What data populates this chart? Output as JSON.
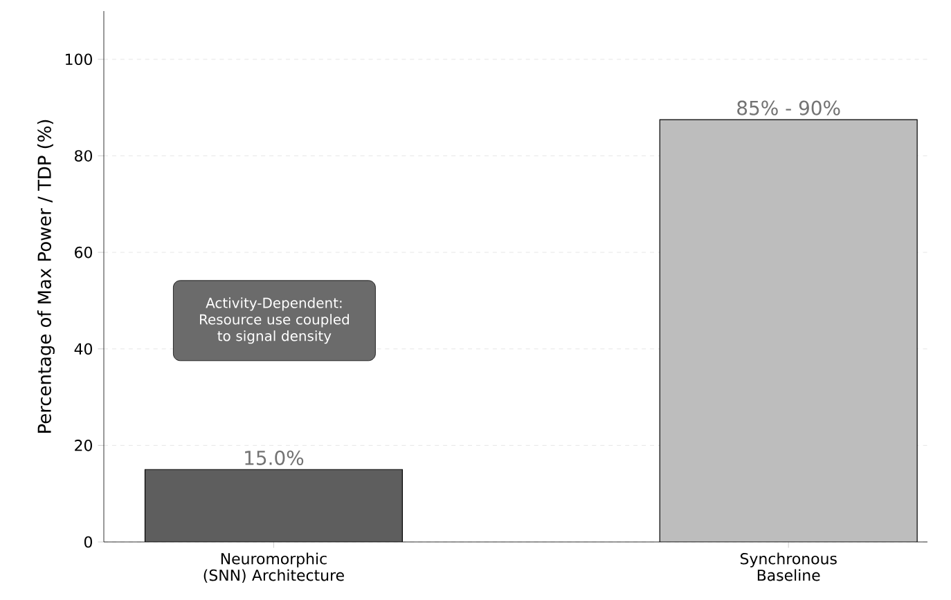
{
  "chart_data": {
    "type": "bar",
    "ylabel": "Percentage of Max Power / TDP (%)",
    "categories": [
      "Neuromorphic (SNN) Architecture",
      "Synchronous Baseline"
    ],
    "values": [
      15.0,
      87.5
    ],
    "colors": [
      "#5e5e5e",
      "#bdbdbd"
    ],
    "value_labels": [
      "15.0%",
      null
    ],
    "ylim": [
      0,
      110
    ],
    "yticks": [
      0,
      20,
      40,
      60,
      80,
      100
    ],
    "grid": "y",
    "annotations": [
      "Activity-Dependent: Resource use coupled to signal density",
      {
        "text": "85% - 90%",
        "x": "Synchronous Baseline",
        "y": 87.5
      }
    ]
  }
}
